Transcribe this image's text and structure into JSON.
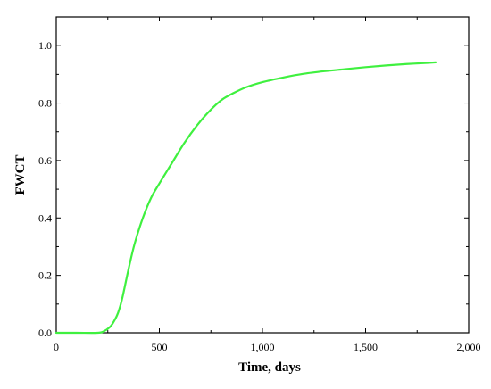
{
  "chart_data": {
    "type": "line",
    "title": "",
    "xlabel": "Time, days",
    "ylabel": "FWCT",
    "xlim": [
      0,
      2000
    ],
    "ylim": [
      0,
      1.1
    ],
    "x_ticks": [
      0,
      500,
      1000,
      1500,
      2000
    ],
    "x_tick_labels": [
      "0",
      "500",
      "1,000",
      "1,500",
      "2,000"
    ],
    "y_ticks": [
      0.0,
      0.2,
      0.4,
      0.6,
      0.8,
      1.0
    ],
    "y_tick_labels": [
      "0.0",
      "0.2",
      "0.4",
      "0.6",
      "0.8",
      "1.0"
    ],
    "grid": false,
    "series": [
      {
        "color": "#3ff03f",
        "x": [
          0,
          100,
          200,
          230,
          260,
          280,
          300,
          320,
          350,
          380,
          420,
          460,
          500,
          560,
          620,
          680,
          740,
          800,
          860,
          920,
          1000,
          1100,
          1200,
          1300,
          1400,
          1500,
          1600,
          1700,
          1800,
          1840
        ],
        "y": [
          0.0,
          0.0,
          0.0,
          0.005,
          0.02,
          0.04,
          0.07,
          0.12,
          0.22,
          0.31,
          0.4,
          0.47,
          0.52,
          0.59,
          0.66,
          0.72,
          0.77,
          0.81,
          0.835,
          0.855,
          0.873,
          0.889,
          0.902,
          0.911,
          0.918,
          0.925,
          0.931,
          0.936,
          0.94,
          0.942
        ]
      }
    ]
  }
}
